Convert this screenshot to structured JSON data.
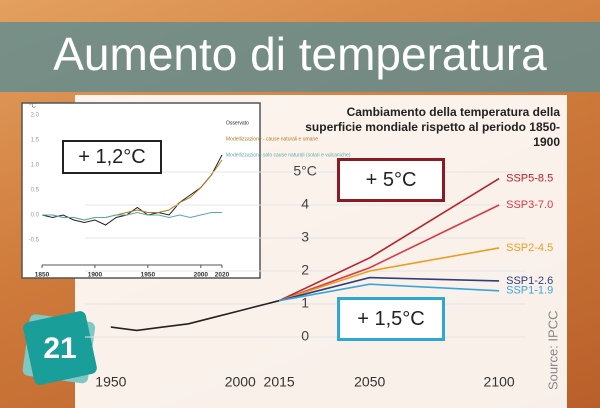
{
  "header": {
    "title": "Aumento di temperatura"
  },
  "badge": "21",
  "chart_data": [
    {
      "type": "line",
      "annotations": [
        "+ 1,2°C"
      ],
      "y_label": "°C",
      "x": [
        1850,
        1860,
        1870,
        1880,
        1890,
        1900,
        1910,
        1920,
        1930,
        1940,
        1950,
        1960,
        1970,
        1980,
        1990,
        2000,
        2010,
        2020
      ],
      "series": [
        {
          "name": "Osservato",
          "color": "#222222",
          "values": [
            0.0,
            -0.05,
            0.0,
            -0.1,
            -0.15,
            -0.1,
            -0.2,
            -0.05,
            0.0,
            0.15,
            0.0,
            0.05,
            0.0,
            0.25,
            0.4,
            0.55,
            0.8,
            1.2
          ]
        },
        {
          "name": "Modellizzazione - cause naturali e umane",
          "color": "#b07a1e",
          "values": [
            0.0,
            0.0,
            -0.05,
            -0.05,
            -0.1,
            -0.05,
            -0.05,
            0.0,
            0.05,
            0.1,
            0.05,
            0.05,
            0.1,
            0.25,
            0.35,
            0.55,
            0.8,
            1.1
          ]
        },
        {
          "name": "Modellizzazione solo cause naturali (solari e vulcaniche)",
          "color": "#5aa9a9",
          "values": [
            0.0,
            0.0,
            -0.05,
            -0.05,
            -0.1,
            -0.05,
            -0.05,
            0.0,
            0.0,
            0.05,
            0.0,
            0.0,
            -0.05,
            0.0,
            -0.05,
            0.0,
            0.05,
            0.05
          ]
        }
      ],
      "xlim": [
        1850,
        2020
      ],
      "ylim": [
        -1,
        2
      ],
      "xticks": [
        1850,
        1900,
        1950,
        2000,
        2020
      ],
      "yticks": [
        {
          "value": -0.5,
          "label": "-0.5"
        },
        {
          "value": 0,
          "label": "0.0"
        },
        {
          "value": 0.5,
          "label": "0.5"
        },
        {
          "value": 1,
          "label": "1.0"
        },
        {
          "value": 1.5,
          "label": "1.5"
        },
        {
          "value": 2,
          "label": "2.0"
        }
      ],
      "legend": "right",
      "grid": false
    },
    {
      "type": "line",
      "title": "Cambiamento della temperatura della superficie mondiale rispetto al periodo 1850-1900",
      "annotations": [
        "+ 5°C",
        "+ 1,5°C"
      ],
      "source": "Source: IPCC",
      "x": [
        1950,
        1960,
        1970,
        1980,
        1990,
        2000,
        2010,
        2015,
        2050,
        2100
      ],
      "series": [
        {
          "color": "#222222",
          "values": [
            0.3,
            0.2,
            0.3,
            0.4,
            0.6,
            0.8,
            1.0,
            1.1,
            null,
            null
          ]
        },
        {
          "name": "SSP5-8.5",
          "color": "#b8222b",
          "values": [
            null,
            null,
            null,
            null,
            null,
            null,
            null,
            1.1,
            2.4,
            4.8
          ]
        },
        {
          "name": "SSP3-7.0",
          "color": "#d83a46",
          "values": [
            null,
            null,
            null,
            null,
            null,
            null,
            null,
            1.1,
            2.1,
            4.0
          ]
        },
        {
          "name": "SSP2-4.5",
          "color": "#e8a020",
          "values": [
            null,
            null,
            null,
            null,
            null,
            null,
            null,
            1.1,
            2.0,
            2.7
          ]
        },
        {
          "name": "SSP1-2.6",
          "color": "#2e3f7a",
          "values": [
            null,
            null,
            null,
            null,
            null,
            null,
            null,
            1.1,
            1.8,
            1.7
          ]
        },
        {
          "name": "SSP1-1.9",
          "color": "#3aa6d8",
          "values": [
            null,
            null,
            null,
            null,
            null,
            null,
            null,
            1.1,
            1.6,
            1.4
          ]
        }
      ],
      "xlim": [
        1940,
        2110
      ],
      "ylim": [
        -1,
        6
      ],
      "xticks": [
        1950,
        2000,
        2015,
        2050,
        2100
      ],
      "yticks": [
        0,
        1,
        2,
        3,
        4,
        {
          "value": 5,
          "label": "5°C"
        }
      ],
      "grid": true
    }
  ]
}
